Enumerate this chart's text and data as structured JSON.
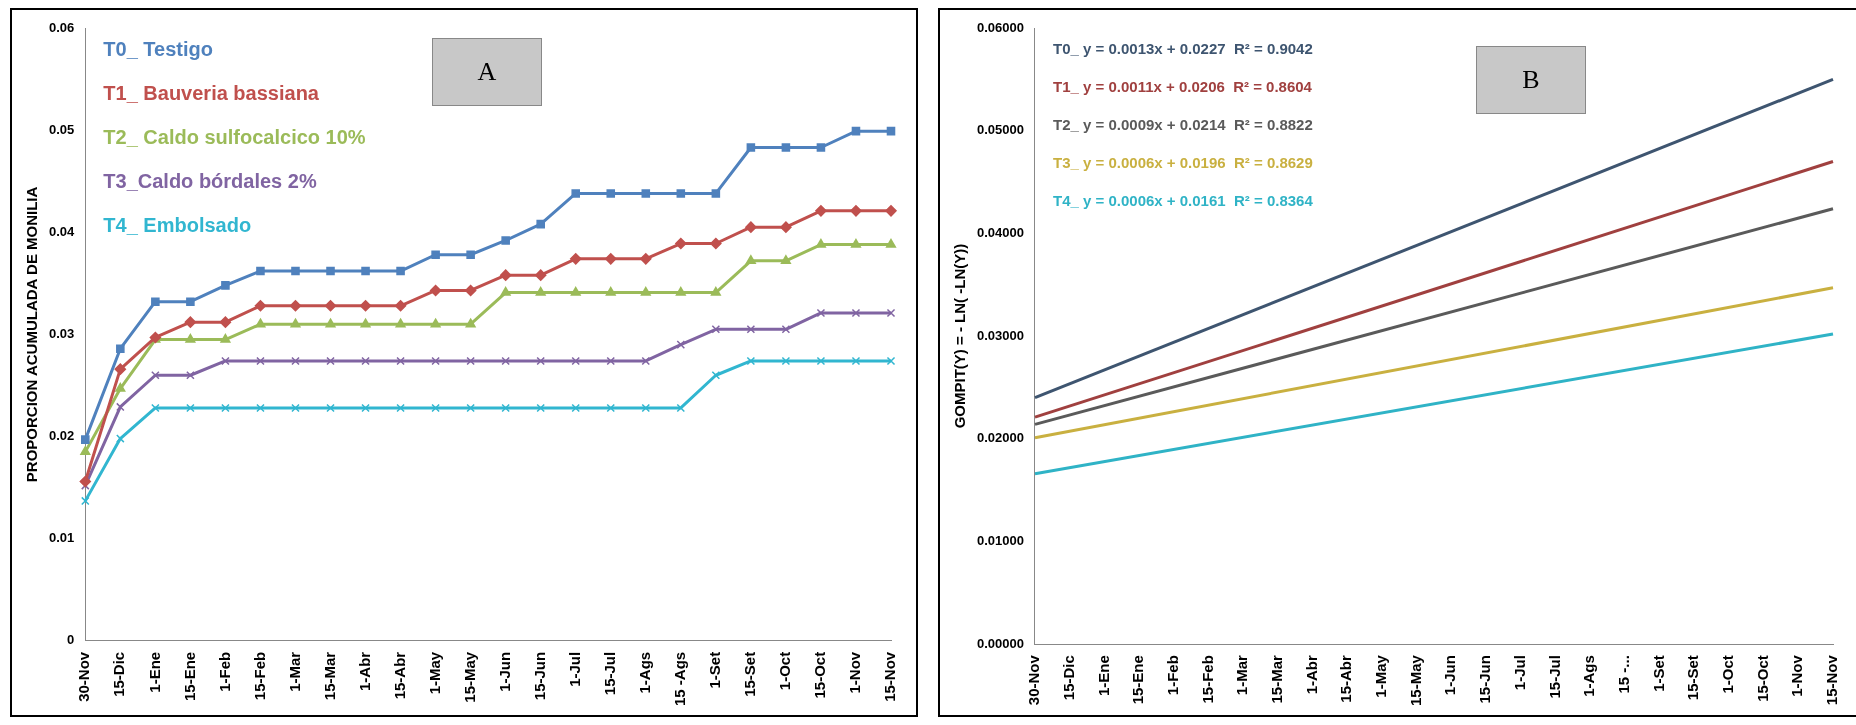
{
  "chart_data": [
    {
      "type": "line",
      "title": "A",
      "ylabel": "PROPORCION ACUMULADA DE MONILIA",
      "categories": [
        "30-Nov",
        "15-Dic",
        "1-Ene",
        "15-Ene",
        "1-Feb",
        "15-Feb",
        "1-Mar",
        "15-Mar",
        "1-Abr",
        "15-Abr",
        "1-May",
        "15-May",
        "1-Jun",
        "15-Jun",
        "1-Jul",
        "15-Jul",
        "1-Ags",
        "15 -Ags",
        "1-Set",
        "15-Set",
        "1-Oct",
        "15-Oct",
        "1-Nov",
        "15-Nov"
      ],
      "ylim": [
        0,
        0.06
      ],
      "yticks": [
        0,
        0.01,
        0.02,
        0.03,
        0.04,
        0.05,
        0.06
      ],
      "grid": false,
      "legend": "top left",
      "line_style": "solid",
      "series": [
        {
          "name": "T0_ Testigo",
          "color": "#4f81bd",
          "marker": "square",
          "values": [
            0.0197,
            0.0286,
            0.0332,
            0.0332,
            0.0348,
            0.0362,
            0.0362,
            0.0362,
            0.0362,
            0.0362,
            0.0378,
            0.0378,
            0.0392,
            0.0408,
            0.0438,
            0.0438,
            0.0438,
            0.0438,
            0.0438,
            0.0483,
            0.0483,
            0.0483,
            0.0499,
            0.0499
          ]
        },
        {
          "name": "T1_ Bauveria bassiana",
          "color": "#c0504d",
          "marker": "diamond",
          "values": [
            0.0156,
            0.0266,
            0.0297,
            0.0312,
            0.0312,
            0.0328,
            0.0328,
            0.0328,
            0.0328,
            0.0328,
            0.0343,
            0.0343,
            0.0358,
            0.0358,
            0.0374,
            0.0374,
            0.0374,
            0.0389,
            0.0389,
            0.0405,
            0.0405,
            0.0421,
            0.0421,
            0.0421
          ]
        },
        {
          "name": "T2_ Caldo sulfocalcico 10%",
          "color": "#9bbb59",
          "marker": "triangle",
          "values": [
            0.0185,
            0.0247,
            0.0295,
            0.0295,
            0.0295,
            0.031,
            0.031,
            0.031,
            0.031,
            0.031,
            0.031,
            0.031,
            0.0341,
            0.0341,
            0.0341,
            0.0341,
            0.0341,
            0.0341,
            0.0341,
            0.0372,
            0.0372,
            0.0388,
            0.0388,
            0.0388
          ]
        },
        {
          "name": "T3_Caldo bórdales 2%",
          "color": "#8064a2",
          "marker": "cross",
          "values": [
            0.0152,
            0.0229,
            0.026,
            0.026,
            0.0274,
            0.0274,
            0.0274,
            0.0274,
            0.0274,
            0.0274,
            0.0274,
            0.0274,
            0.0274,
            0.0274,
            0.0274,
            0.0274,
            0.0274,
            0.029,
            0.0305,
            0.0305,
            0.0305,
            0.0321,
            0.0321,
            0.0321
          ]
        },
        {
          "name": "T4_ Embolsado",
          "color": "#31b6d0",
          "marker": "cross",
          "values": [
            0.0137,
            0.0198,
            0.0228,
            0.0228,
            0.0228,
            0.0228,
            0.0228,
            0.0228,
            0.0228,
            0.0228,
            0.0228,
            0.0228,
            0.0228,
            0.0228,
            0.0228,
            0.0228,
            0.0228,
            0.0228,
            0.026,
            0.0274,
            0.0274,
            0.0274,
            0.0274,
            0.0274
          ]
        }
      ]
    },
    {
      "type": "line",
      "title": "B",
      "ylabel": "GOMPIT(Y) = - LN( -LN(Y))",
      "categories": [
        "30-Nov",
        "15-Dic",
        "1-Ene",
        "15-Ene",
        "1-Feb",
        "15-Feb",
        "1-Mar",
        "15-Mar",
        "1-Abr",
        "15-Abr",
        "1-May",
        "15-May",
        "1-Jun",
        "15-Jun",
        "1-Jul",
        "15-Jul",
        "1-Ags",
        "15 -...",
        "1-Set",
        "15-Set",
        "1-Oct",
        "15-Oct",
        "1-Nov",
        "15-Nov"
      ],
      "ylim": [
        0,
        0.06
      ],
      "yticks": [
        {
          "value": 0,
          "label": "0.00000"
        },
        {
          "value": 0.01,
          "label": "0.01000"
        },
        {
          "value": 0.02,
          "label": "0.02000"
        },
        {
          "value": 0.03,
          "label": "0.03000"
        },
        {
          "value": 0.04,
          "label": "0.04000"
        },
        {
          "value": 0.05,
          "label": "0.05000"
        },
        {
          "value": 0.06,
          "label": "0.06000"
        }
      ],
      "grid": false,
      "legend": "top left",
      "marker": "none",
      "line_style": "solid",
      "series": [
        {
          "name": "T0_ y = 0.0013x + 0.0227  R² = 0.9042",
          "color": "#3e5570",
          "values": [
            0.024,
            null,
            null,
            null,
            null,
            null,
            null,
            null,
            null,
            null,
            null,
            null,
            null,
            null,
            null,
            null,
            null,
            null,
            null,
            null,
            null,
            null,
            null,
            0.055
          ]
        },
        {
          "name": "T1_ y = 0.0011x + 0.0206  R² = 0.8604",
          "color": "#a0403f",
          "values": [
            0.0221,
            null,
            null,
            null,
            null,
            null,
            null,
            null,
            null,
            null,
            null,
            null,
            null,
            null,
            null,
            null,
            null,
            null,
            null,
            null,
            null,
            null,
            null,
            0.047
          ]
        },
        {
          "name": "T2_ y = 0.0009x + 0.0214  R² = 0.8822",
          "color": "#5a5a5a",
          "values": [
            0.0214,
            null,
            null,
            null,
            null,
            null,
            null,
            null,
            null,
            null,
            null,
            null,
            null,
            null,
            null,
            null,
            null,
            null,
            null,
            null,
            null,
            null,
            null,
            0.0424
          ]
        },
        {
          "name": "T3_ y = 0.0006x + 0.0196  R² = 0.8629",
          "color": "#c9b040",
          "values": [
            0.0201,
            null,
            null,
            null,
            null,
            null,
            null,
            null,
            null,
            null,
            null,
            null,
            null,
            null,
            null,
            null,
            null,
            null,
            null,
            null,
            null,
            null,
            null,
            0.0347
          ]
        },
        {
          "name": "T4_ y = 0.0006x + 0.0161  R² = 0.8364",
          "color": "#2fb3c6",
          "values": [
            0.0166,
            null,
            null,
            null,
            null,
            null,
            null,
            null,
            null,
            null,
            null,
            null,
            null,
            null,
            null,
            null,
            null,
            null,
            null,
            null,
            null,
            null,
            null,
            0.0302
          ]
        }
      ]
    }
  ]
}
